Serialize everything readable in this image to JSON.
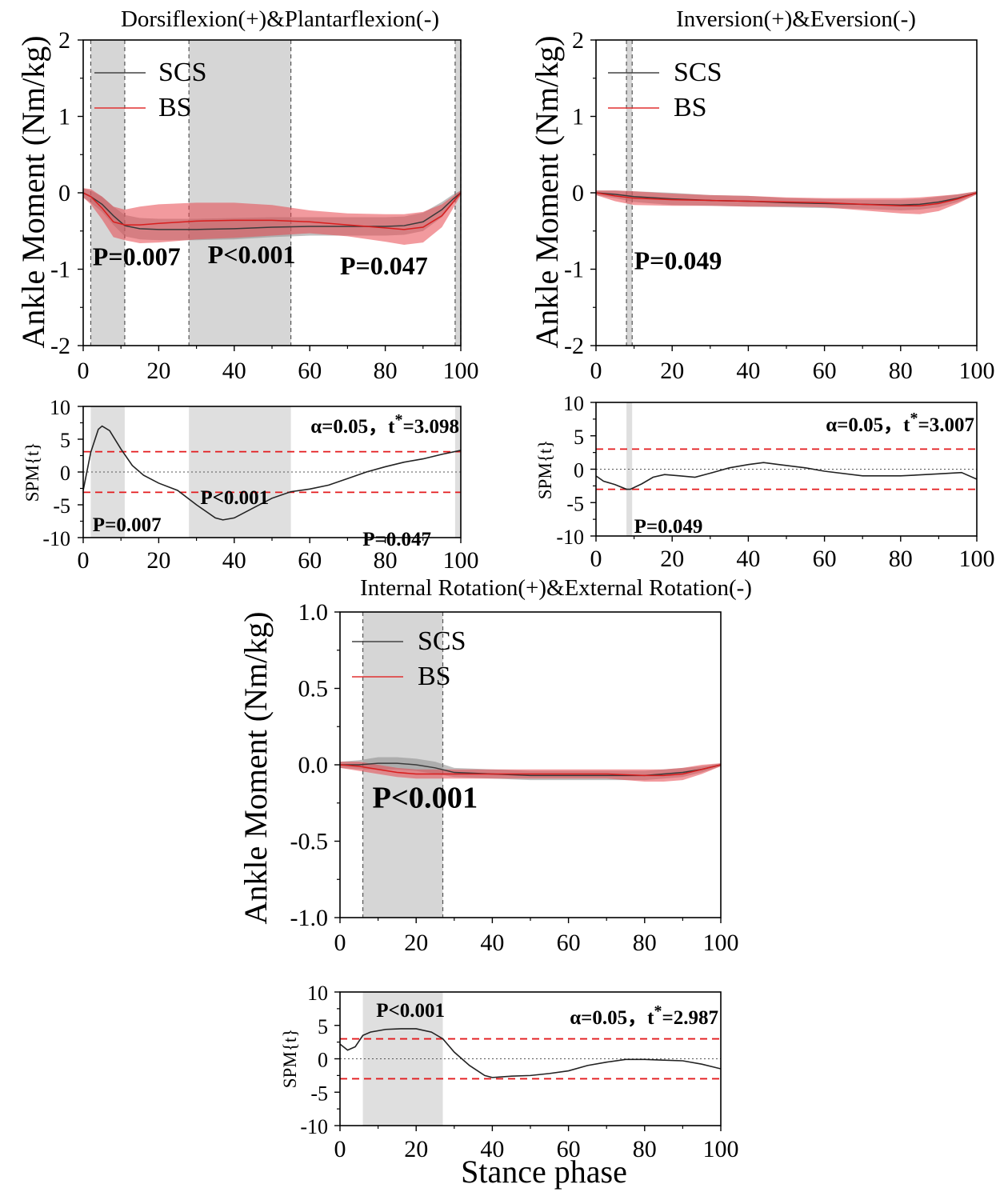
{
  "chart_data": [
    {
      "id": "df",
      "type": "line",
      "title": "Dorsiflexion(+)&Plantarflexion(-)",
      "ylabel": "Ankle Moment (Nm/kg)",
      "xlabel": "",
      "xlim": [
        0,
        100
      ],
      "ylim": [
        -2,
        2
      ],
      "xticks": [
        0,
        20,
        40,
        60,
        80,
        100
      ],
      "yticks": [
        -2,
        -1,
        0,
        1,
        2
      ],
      "ytick_labels": [
        "-2",
        "-1",
        "0",
        "1",
        "2"
      ],
      "legend": [
        "SCS",
        "BS"
      ],
      "clusters": [
        [
          2,
          11
        ],
        [
          28,
          55
        ],
        [
          98.5,
          100
        ]
      ],
      "p_labels": [
        {
          "text": "P=0.007",
          "x": 2.5,
          "y": -0.95
        },
        {
          "text": "P<0.001",
          "x": 33,
          "y": -0.92
        },
        {
          "text": "P=0.047",
          "x": 68,
          "y": -1.07
        }
      ],
      "series": [
        {
          "name": "SCS",
          "x": [
            0,
            2,
            5,
            8,
            11,
            15,
            20,
            30,
            40,
            50,
            60,
            70,
            80,
            85,
            90,
            95,
            98,
            100
          ],
          "mean": [
            0,
            -0.05,
            -0.15,
            -0.3,
            -0.43,
            -0.47,
            -0.48,
            -0.48,
            -0.47,
            -0.45,
            -0.44,
            -0.44,
            -0.44,
            -0.43,
            -0.38,
            -0.22,
            -0.08,
            0
          ],
          "sd": [
            0.06,
            0.08,
            0.1,
            0.12,
            0.14,
            0.14,
            0.14,
            0.14,
            0.14,
            0.13,
            0.12,
            0.12,
            0.12,
            0.12,
            0.12,
            0.1,
            0.06,
            0.03
          ]
        },
        {
          "name": "BS",
          "x": [
            0,
            2,
            5,
            8,
            11,
            15,
            20,
            30,
            40,
            50,
            60,
            70,
            80,
            85,
            90,
            95,
            98,
            100
          ],
          "mean": [
            0,
            -0.05,
            -0.2,
            -0.38,
            -0.42,
            -0.42,
            -0.4,
            -0.37,
            -0.36,
            -0.36,
            -0.38,
            -0.42,
            -0.46,
            -0.48,
            -0.45,
            -0.3,
            -0.12,
            0
          ],
          "sd": [
            0.06,
            0.1,
            0.15,
            0.2,
            0.2,
            0.24,
            0.25,
            0.24,
            0.23,
            0.2,
            0.15,
            0.15,
            0.18,
            0.2,
            0.2,
            0.15,
            0.08,
            0.03
          ]
        }
      ]
    },
    {
      "id": "df_spm",
      "type": "line",
      "title": "",
      "ylabel": "SPM{t}",
      "xlim": [
        0,
        100
      ],
      "ylim": [
        -10,
        10
      ],
      "xticks": [
        0,
        20,
        40,
        60,
        80,
        100
      ],
      "yticks": [
        -10,
        -5,
        0,
        5,
        10
      ],
      "ytick_labels": [
        "-10",
        "-5",
        "0",
        "5",
        "10"
      ],
      "threshold": 3.098,
      "annotation": {
        "alpha": "α=0.05，t",
        "star": "*",
        "value": "=3.098"
      },
      "clusters": [
        [
          2,
          11
        ],
        [
          28,
          55
        ],
        [
          98.5,
          100
        ]
      ],
      "p_labels": [
        {
          "text": "P=0.007",
          "x": 2.5,
          "y": -9.0
        },
        {
          "text": "P<0.001",
          "x": 31,
          "y": -4.9
        },
        {
          "text": "P=0.047",
          "x": 74,
          "y": -11.2
        }
      ],
      "series": [
        {
          "name": "SPM{t}",
          "x": [
            0,
            2,
            4,
            5,
            7,
            10,
            13,
            16,
            20,
            25,
            30,
            35,
            37,
            40,
            45,
            50,
            55,
            60,
            65,
            70,
            75,
            80,
            85,
            90,
            95,
            100
          ],
          "y": [
            -2.8,
            3,
            6.5,
            7,
            6.3,
            3.5,
            1,
            -0.5,
            -1.7,
            -2.8,
            -5,
            -7,
            -7.3,
            -7,
            -5.5,
            -4,
            -3,
            -2.6,
            -2,
            -1,
            0,
            0.8,
            1.5,
            2,
            2.7,
            3.3
          ]
        }
      ]
    },
    {
      "id": "inv",
      "type": "line",
      "title": "Inversion(+)&Eversion(-)",
      "ylabel": "Ankle Moment (Nm/kg)",
      "xlim": [
        0,
        100
      ],
      "ylim": [
        -2,
        2
      ],
      "xticks": [
        0,
        20,
        40,
        60,
        80,
        100
      ],
      "yticks": [
        -2,
        -1,
        0,
        1,
        2
      ],
      "ytick_labels": [
        "-2",
        "-1",
        "0",
        "1",
        "2"
      ],
      "legend": [
        "SCS",
        "BS"
      ],
      "clusters": [
        [
          8,
          9.5
        ]
      ],
      "p_labels": [
        {
          "text": "P=0.049",
          "x": 10,
          "y": -1.0
        }
      ],
      "series": [
        {
          "name": "SCS",
          "x": [
            0,
            5,
            10,
            20,
            30,
            40,
            50,
            60,
            70,
            80,
            85,
            90,
            95,
            100
          ],
          "mean": [
            0,
            -0.02,
            -0.05,
            -0.08,
            -0.1,
            -0.11,
            -0.13,
            -0.14,
            -0.15,
            -0.16,
            -0.15,
            -0.12,
            -0.07,
            0
          ],
          "sd": [
            0.03,
            0.05,
            0.07,
            0.08,
            0.07,
            0.07,
            0.06,
            0.06,
            0.06,
            0.07,
            0.07,
            0.07,
            0.05,
            0.02
          ]
        },
        {
          "name": "BS",
          "x": [
            0,
            5,
            10,
            20,
            30,
            40,
            50,
            60,
            70,
            80,
            85,
            90,
            95,
            100
          ],
          "mean": [
            0,
            -0.04,
            -0.07,
            -0.09,
            -0.1,
            -0.11,
            -0.12,
            -0.13,
            -0.15,
            -0.17,
            -0.17,
            -0.14,
            -0.08,
            0
          ],
          "sd": [
            0.03,
            0.07,
            0.09,
            0.08,
            0.07,
            0.07,
            0.06,
            0.06,
            0.08,
            0.1,
            0.11,
            0.1,
            0.06,
            0.02
          ]
        }
      ]
    },
    {
      "id": "inv_spm",
      "type": "line",
      "title": "",
      "ylabel": "SPM{t}",
      "xlim": [
        0,
        100
      ],
      "ylim": [
        -10,
        10
      ],
      "xticks": [
        0,
        20,
        40,
        60,
        80,
        100
      ],
      "yticks": [
        -10,
        -5,
        0,
        5,
        10
      ],
      "ytick_labels": [
        "-10",
        "-5",
        "0",
        "5",
        "10"
      ],
      "threshold": 3.007,
      "annotation": {
        "alpha": "α=0.05，t",
        "star": "*",
        "value": "=3.007"
      },
      "clusters": [
        [
          8,
          9.5
        ]
      ],
      "p_labels": [
        {
          "text": "P=0.049",
          "x": 10,
          "y": -9.5
        }
      ],
      "series": [
        {
          "name": "SPM{t}",
          "x": [
            0,
            2,
            5,
            8,
            9,
            12,
            15,
            18,
            22,
            26,
            30,
            35,
            40,
            44,
            48,
            55,
            60,
            70,
            80,
            90,
            96,
            100
          ],
          "y": [
            -1,
            -1.8,
            -2.3,
            -3,
            -3,
            -2.2,
            -1.2,
            -0.8,
            -1,
            -1.2,
            -0.6,
            0.2,
            0.7,
            1,
            0.7,
            0.2,
            -0.3,
            -1,
            -1,
            -0.7,
            -0.5,
            -1.5
          ]
        }
      ]
    },
    {
      "id": "rot",
      "type": "line",
      "title": "Internal Rotation(+)&External Rotation(-)",
      "ylabel": "Ankle Moment (Nm/kg)",
      "xlabel": "",
      "xlim": [
        0,
        100
      ],
      "ylim": [
        -1,
        1
      ],
      "xticks": [
        0,
        20,
        40,
        60,
        80,
        100
      ],
      "yticks": [
        -1,
        -0.5,
        0,
        0.5,
        1
      ],
      "ytick_labels": [
        "-1.0",
        "-0.5",
        "0.0",
        "0.5",
        "1.0"
      ],
      "legend": [
        "SCS",
        "BS"
      ],
      "clusters": [
        [
          6,
          27
        ]
      ],
      "p_labels": [
        {
          "text": "P<0.001",
          "x": 8.5,
          "y": -0.28
        }
      ],
      "series": [
        {
          "name": "SCS",
          "x": [
            0,
            5,
            10,
            15,
            20,
            25,
            30,
            40,
            50,
            60,
            70,
            80,
            85,
            90,
            95,
            100
          ],
          "mean": [
            0,
            0,
            0.01,
            0.01,
            0,
            -0.02,
            -0.05,
            -0.06,
            -0.07,
            -0.07,
            -0.07,
            -0.07,
            -0.06,
            -0.05,
            -0.03,
            0
          ],
          "sd": [
            0.02,
            0.03,
            0.04,
            0.04,
            0.04,
            0.04,
            0.03,
            0.03,
            0.03,
            0.03,
            0.03,
            0.03,
            0.03,
            0.03,
            0.02,
            0.01
          ]
        },
        {
          "name": "BS",
          "x": [
            0,
            5,
            10,
            15,
            20,
            25,
            30,
            40,
            50,
            60,
            70,
            80,
            85,
            90,
            95,
            100
          ],
          "mean": [
            0,
            -0.01,
            -0.03,
            -0.05,
            -0.06,
            -0.06,
            -0.06,
            -0.06,
            -0.06,
            -0.06,
            -0.06,
            -0.07,
            -0.07,
            -0.06,
            -0.03,
            0
          ],
          "sd": [
            0.02,
            0.03,
            0.03,
            0.03,
            0.03,
            0.03,
            0.03,
            0.03,
            0.03,
            0.03,
            0.03,
            0.04,
            0.04,
            0.04,
            0.03,
            0.01
          ]
        }
      ]
    },
    {
      "id": "rot_spm",
      "type": "line",
      "title": "",
      "ylabel": "SPM{t}",
      "xlabel": "Stance phase",
      "xlim": [
        0,
        100
      ],
      "ylim": [
        -10,
        10
      ],
      "xticks": [
        0,
        20,
        40,
        60,
        80,
        100
      ],
      "yticks": [
        -10,
        -5,
        0,
        5,
        10
      ],
      "ytick_labels": [
        "-10",
        "-5",
        "0",
        "5",
        "10"
      ],
      "threshold": 2.987,
      "annotation": {
        "alpha": "α=0.05，t",
        "star": "*",
        "value": "=2.987"
      },
      "clusters": [
        [
          6,
          27
        ]
      ],
      "p_labels": [
        {
          "text": "P<0.001",
          "x": 9.5,
          "y": 6.3
        }
      ],
      "series": [
        {
          "name": "SPM{t}",
          "x": [
            0,
            2,
            4,
            6,
            8,
            12,
            16,
            20,
            24,
            27,
            30,
            34,
            38,
            40,
            45,
            50,
            55,
            60,
            65,
            70,
            75,
            80,
            85,
            90,
            95,
            100
          ],
          "y": [
            2.2,
            1.3,
            1.8,
            3.5,
            4,
            4.4,
            4.5,
            4.5,
            4,
            3,
            1,
            -1,
            -2.5,
            -2.8,
            -2.6,
            -2.5,
            -2.2,
            -1.8,
            -1,
            -0.5,
            -0.1,
            -0.1,
            -0.2,
            -0.3,
            -0.8,
            -1.5
          ]
        }
      ]
    }
  ]
}
